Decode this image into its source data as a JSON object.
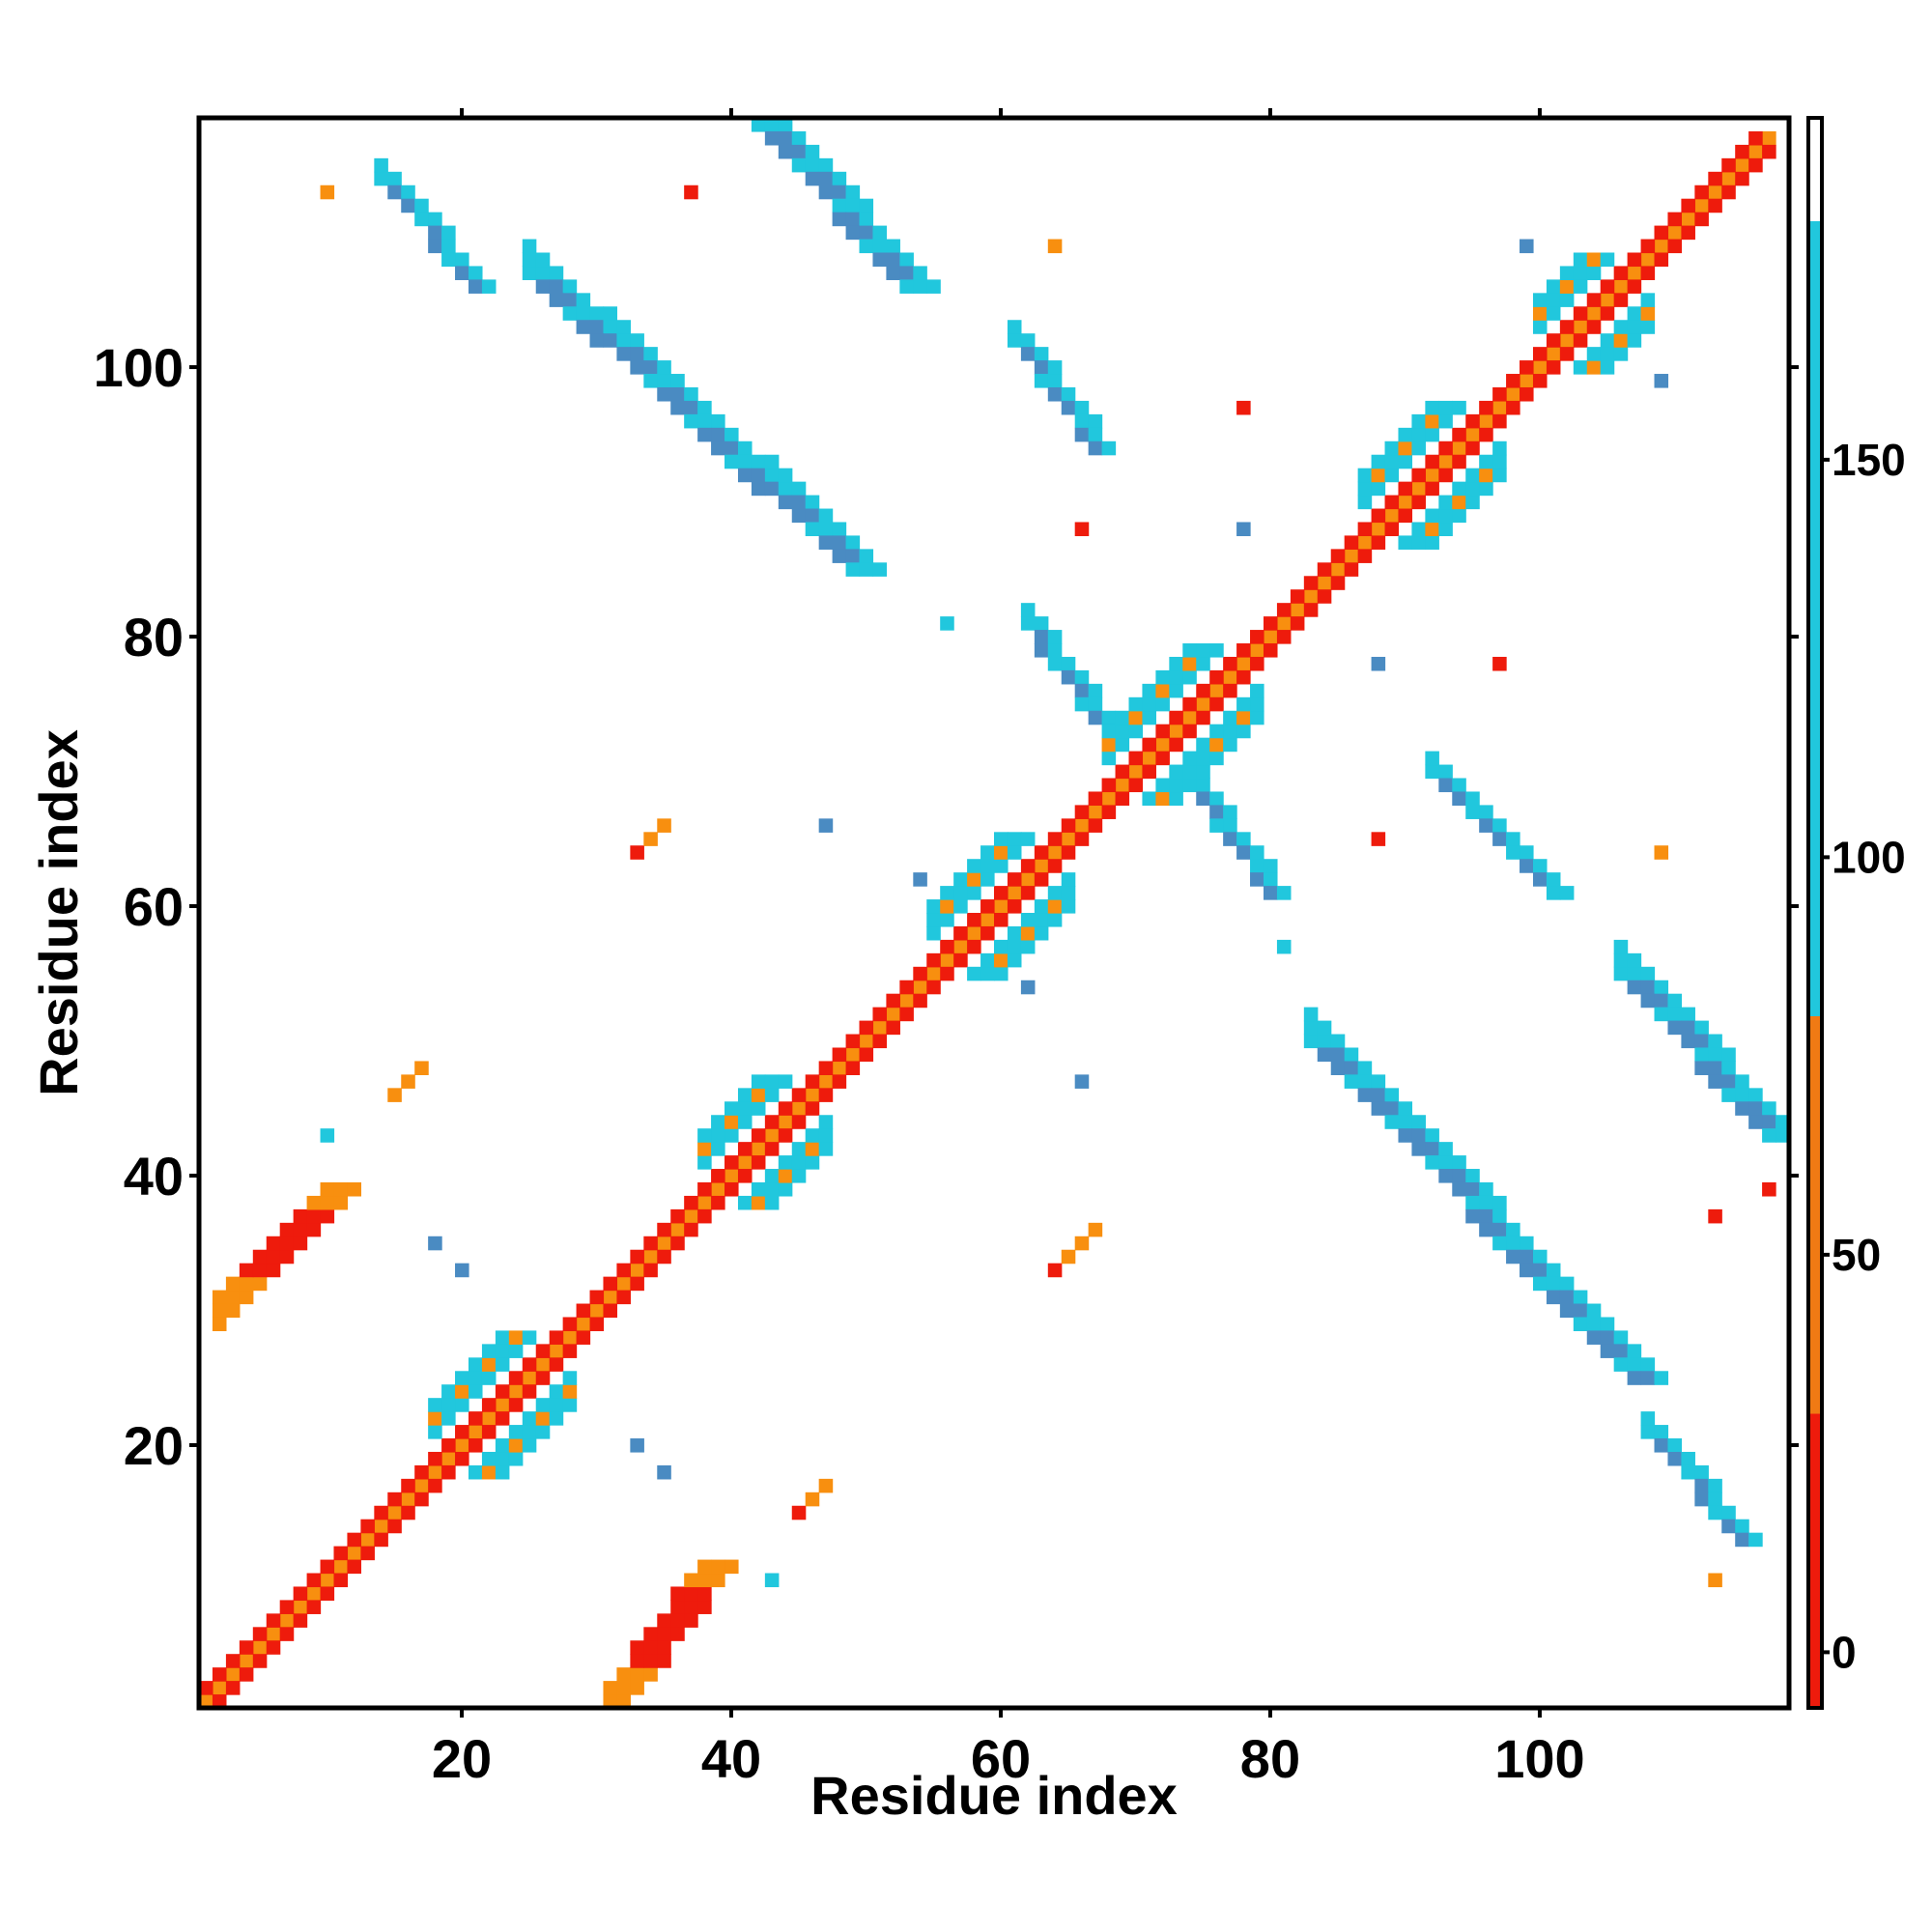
{
  "chart_data": {
    "type": "heatmap",
    "title": "",
    "xlabel": "Residue index",
    "ylabel": "Residue index",
    "xlim": [
      1,
      118
    ],
    "ylim": [
      1,
      118
    ],
    "x_ticks": [
      20,
      40,
      60,
      80,
      100
    ],
    "y_ticks": [
      20,
      40,
      60,
      80,
      100
    ],
    "colorbar": {
      "ticks": [
        0,
        50,
        100,
        150
      ],
      "range": [
        -7,
        193
      ],
      "bands": [
        {
          "from": -7,
          "to": 30,
          "color": "#ee1b0c"
        },
        {
          "from": 30,
          "to": 80,
          "color": "#f07a14"
        },
        {
          "from": 80,
          "to": 180,
          "color": "#21c7dd"
        },
        {
          "from": 180,
          "to": 193,
          "color": "#ffffff"
        }
      ]
    },
    "colors": {
      "red": "#ee1b0c",
      "red_orange": "#f24d0d",
      "orange": "#f88f0f",
      "cyan": "#21c7dd",
      "blue": "#4a8bc2"
    },
    "value_categories": {
      "red": "0-30",
      "orange": "30-80",
      "cyan": "80-130",
      "blue": "130-180"
    },
    "contact_bands": [
      {
        "pattern": "diagonal",
        "from": [
          1,
          1
        ],
        "to": [
          117,
          117
        ],
        "color": "orange"
      },
      {
        "pattern": "diagonal",
        "from": [
          2,
          1
        ],
        "to": [
          117,
          116
        ],
        "color": "red"
      },
      {
        "pattern": "diagonal",
        "from": [
          1,
          2
        ],
        "to": [
          116,
          117
        ],
        "color": "red"
      },
      {
        "pattern": "parallel",
        "from": [
          31,
          2
        ],
        "to": [
          38,
          11
        ],
        "color": "red",
        "width": 3
      },
      {
        "pattern": "parallel",
        "from": [
          2,
          31
        ],
        "to": [
          10,
          39
        ],
        "color": "red",
        "width": 3
      },
      {
        "pattern": "antiparallel",
        "from": [
          14,
          114
        ],
        "to": [
          21,
          106
        ],
        "color": "blue",
        "width": 2
      },
      {
        "pattern": "antiparallel",
        "from": [
          25,
          107
        ],
        "to": [
          49,
          85
        ],
        "color": "blue",
        "width": 3
      },
      {
        "pattern": "antiparallel",
        "from": [
          42,
          118
        ],
        "to": [
          53,
          106
        ],
        "color": "blue",
        "width": 3
      },
      {
        "pattern": "antiparallel",
        "from": [
          61,
          102
        ],
        "to": [
          67,
          94
        ],
        "color": "blue",
        "width": 2
      },
      {
        "pattern": "antiparallel",
        "from": [
          62,
          81
        ],
        "to": [
          67,
          74
        ],
        "color": "blue",
        "width": 2
      },
      {
        "pattern": "antiparallel",
        "from": [
          74,
          69
        ],
        "to": [
          80,
          61
        ],
        "color": "blue",
        "width": 2
      },
      {
        "pattern": "antiparallel",
        "from": [
          92,
          70
        ],
        "to": [
          101,
          61
        ],
        "color": "blue",
        "width": 2
      },
      {
        "pattern": "antiparallel",
        "from": [
          83,
          50
        ],
        "to": [
          107,
          25
        ],
        "color": "blue",
        "width": 3
      },
      {
        "pattern": "antiparallel",
        "from": [
          106,
          55
        ],
        "to": [
          117,
          43
        ],
        "color": "blue",
        "width": 3
      },
      {
        "pattern": "antiparallel",
        "from": [
          108,
          21
        ],
        "to": [
          115,
          13
        ],
        "color": "blue",
        "width": 2
      }
    ],
    "helix_blocks": [
      {
        "center": [
          21,
          21
        ],
        "span": [
          18,
          28
        ],
        "color": "cyan"
      },
      {
        "center": [
          42,
          42
        ],
        "span": [
          38,
          47
        ],
        "color": "cyan"
      },
      {
        "center": [
          60,
          60
        ],
        "span": [
          55,
          65
        ],
        "color": "cyan"
      },
      {
        "center": [
          73,
          73
        ],
        "span": [
          68,
          79
        ],
        "color": "cyan"
      },
      {
        "center": [
          92,
          92
        ],
        "span": [
          87,
          97
        ],
        "color": "cyan"
      },
      {
        "center": [
          104,
          104
        ],
        "span": [
          100,
          108
        ],
        "color": "cyan"
      }
    ],
    "isolated_contacts": [
      [
        10,
        113,
        "orange"
      ],
      [
        37,
        113,
        "red"
      ],
      [
        64,
        109,
        "orange"
      ],
      [
        99,
        109,
        "blue"
      ],
      [
        109,
        99,
        "blue"
      ],
      [
        78,
        97,
        "red"
      ],
      [
        66,
        88,
        "red"
      ],
      [
        78,
        88,
        "blue"
      ],
      [
        56,
        81,
        "cyan"
      ],
      [
        88,
        78,
        "blue"
      ],
      [
        97,
        78,
        "red"
      ],
      [
        33,
        64,
        "red"
      ],
      [
        34,
        65,
        "orange"
      ],
      [
        35,
        66,
        "orange"
      ],
      [
        47,
        66,
        "blue"
      ],
      [
        54,
        62,
        "blue"
      ],
      [
        81,
        57,
        "cyan"
      ],
      [
        62,
        54,
        "blue"
      ],
      [
        66,
        47,
        "blue"
      ],
      [
        10,
        43,
        "cyan"
      ],
      [
        18,
        35,
        "blue"
      ],
      [
        20,
        33,
        "blue"
      ],
      [
        64,
        33,
        "red"
      ],
      [
        65,
        34,
        "orange"
      ],
      [
        66,
        35,
        "orange"
      ],
      [
        67,
        36,
        "orange"
      ],
      [
        33,
        20,
        "blue"
      ],
      [
        35,
        18,
        "blue"
      ],
      [
        45,
        15,
        "red"
      ],
      [
        46,
        16,
        "orange"
      ],
      [
        47,
        17,
        "orange"
      ],
      [
        43,
        10,
        "cyan"
      ],
      [
        113,
        10,
        "orange"
      ],
      [
        113,
        37,
        "red"
      ],
      [
        117,
        39,
        "red"
      ],
      [
        109,
        64,
        "orange"
      ],
      [
        88,
        65,
        "red"
      ],
      [
        15,
        46,
        "orange"
      ],
      [
        16,
        47,
        "orange"
      ],
      [
        17,
        48,
        "orange"
      ]
    ]
  }
}
